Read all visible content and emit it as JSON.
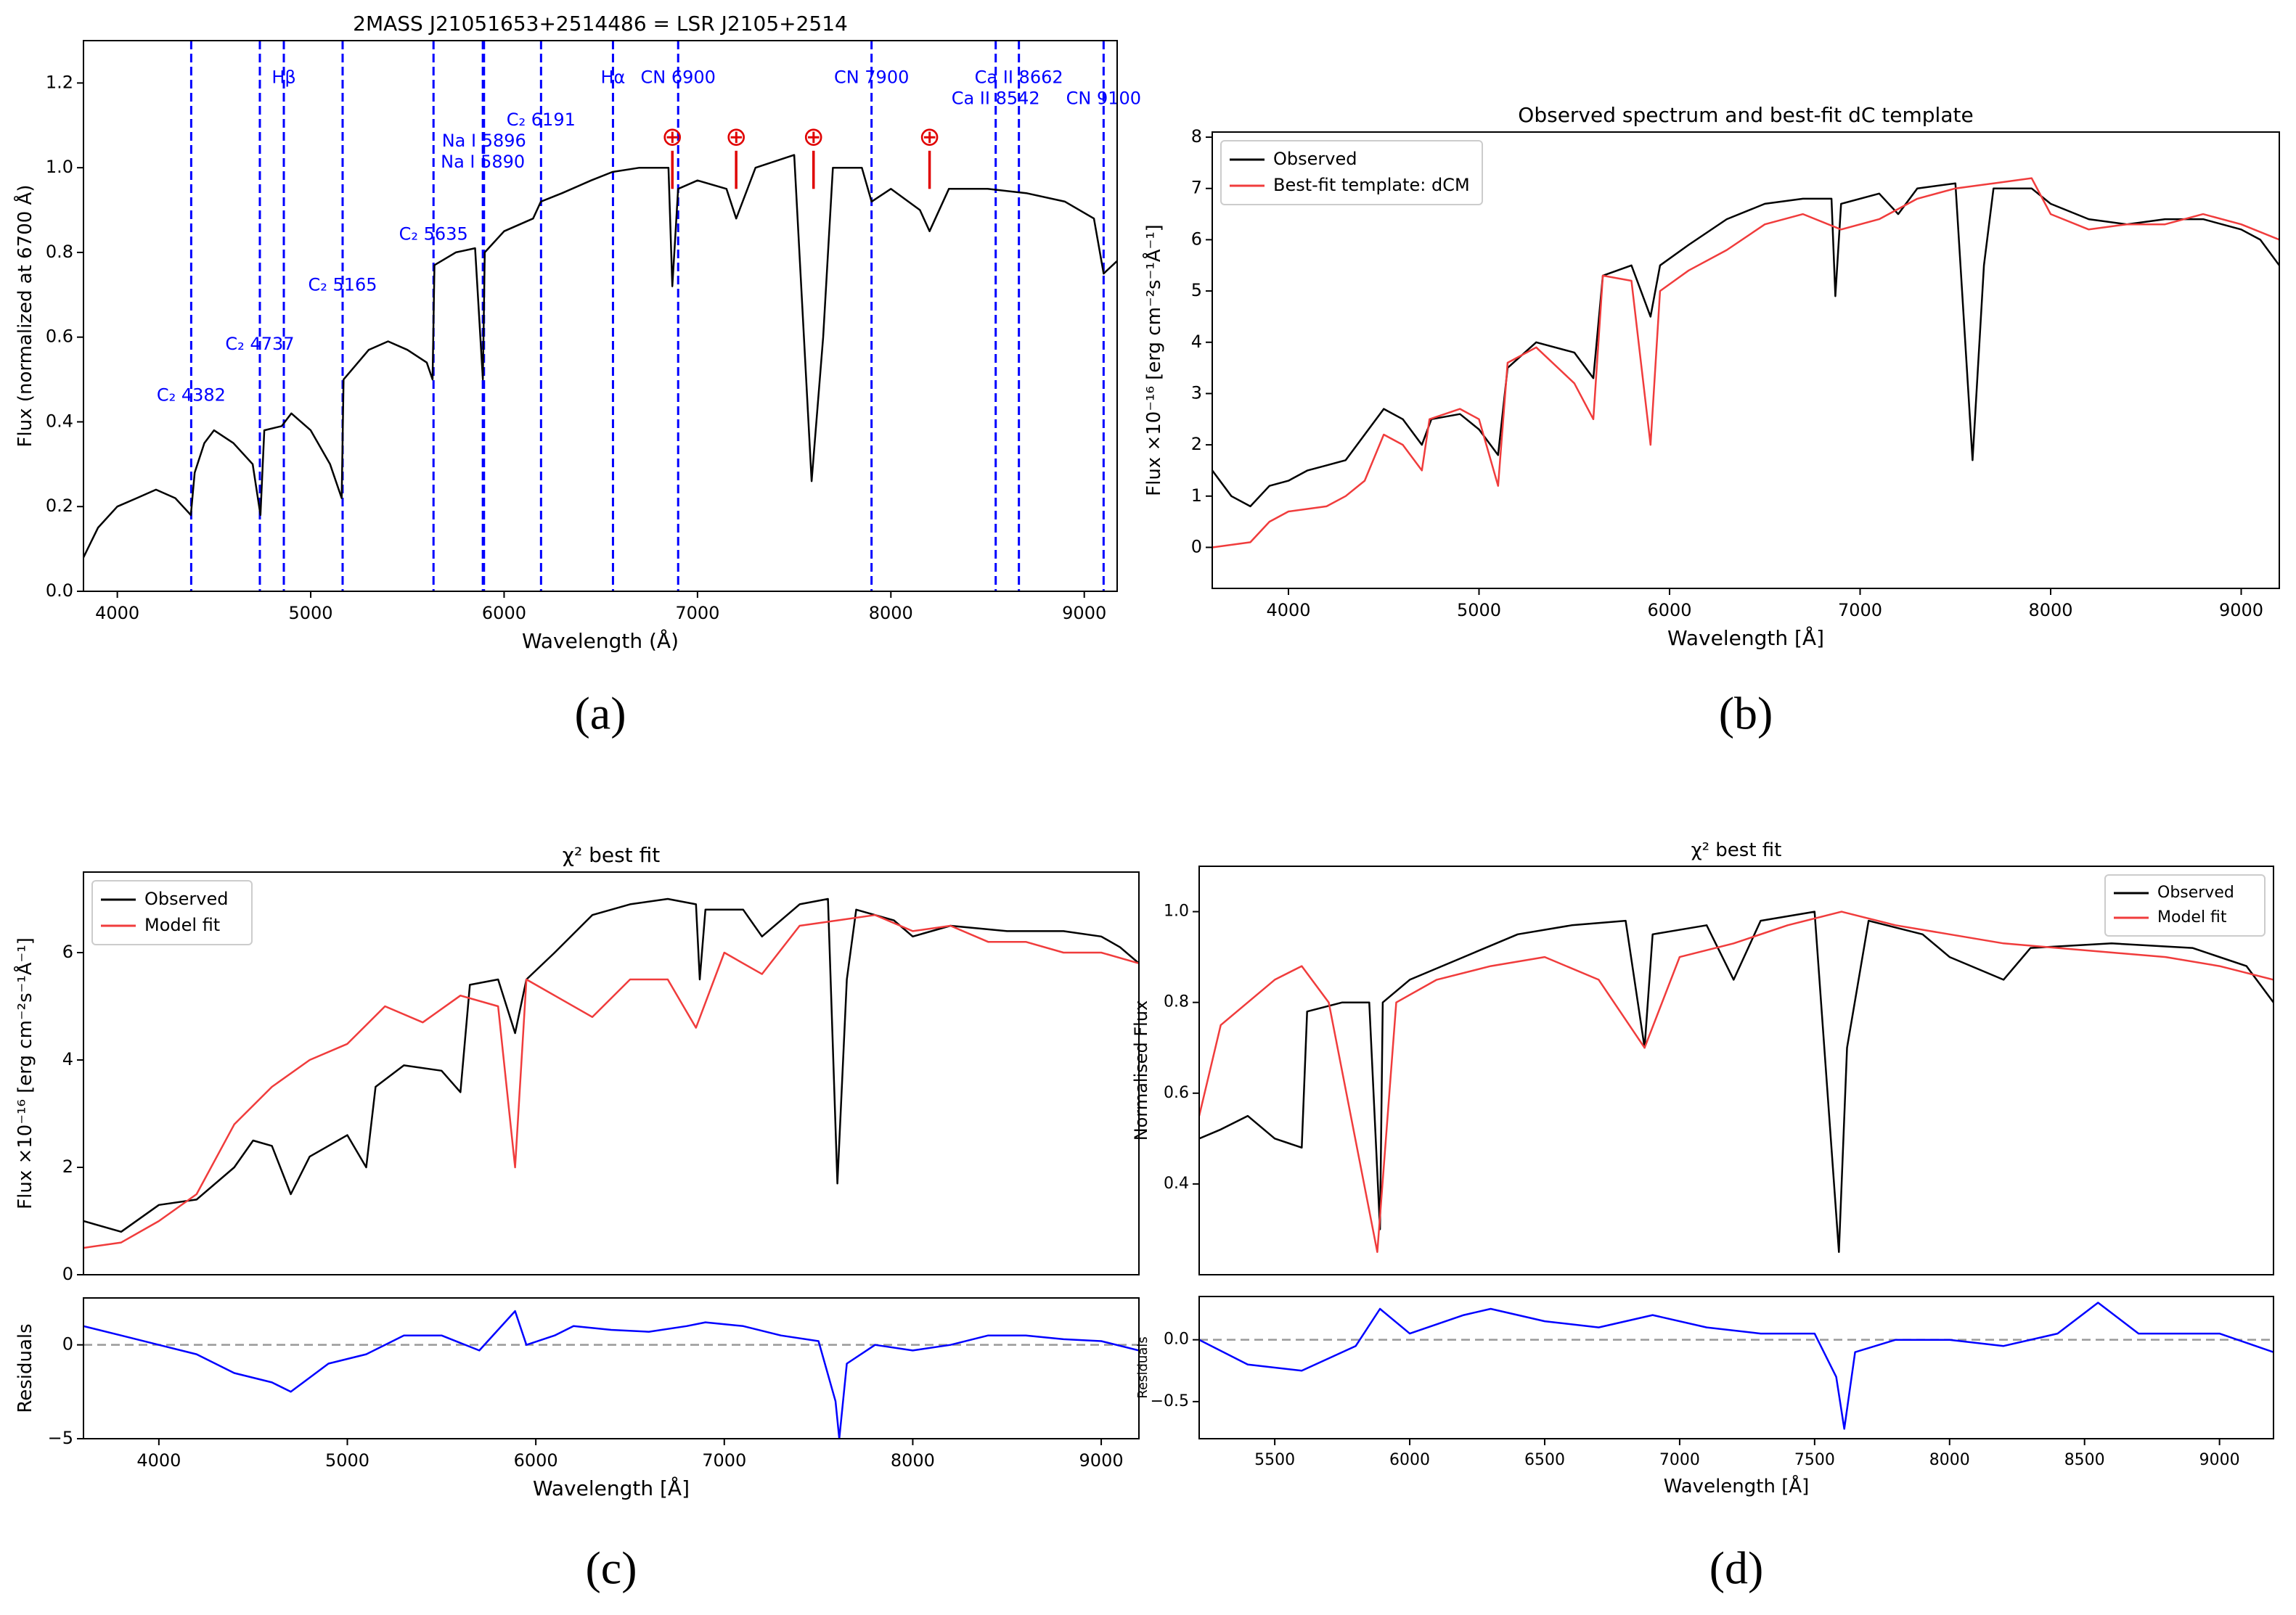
{
  "chart_data": [
    {
      "type": "line",
      "panel_label": "(a)",
      "title": "2MASS J21051653+2514486 = LSR J2105+2514",
      "xlabel": "Wavelength (Å)",
      "ylabel": "Flux (normalized at 6700 Å)",
      "xlim": [
        3825,
        9170
      ],
      "ylim": [
        0,
        1.3
      ],
      "xticks": [
        4000,
        5000,
        6000,
        7000,
        8000,
        9000
      ],
      "yticks": [
        {
          "value": 0,
          "label": "0.0"
        },
        0.2,
        0.4,
        0.6,
        0.8,
        {
          "value": 1,
          "label": "1.0"
        },
        1.2
      ],
      "series": [
        {
          "color": "#000000",
          "x": [
            3825,
            3900,
            4000,
            4100,
            4200,
            4300,
            4380,
            4400,
            4450,
            4500,
            4600,
            4700,
            4740,
            4760,
            4850,
            4900,
            5000,
            5100,
            5160,
            5170,
            5300,
            5400,
            5500,
            5600,
            5630,
            5640,
            5750,
            5850,
            5890,
            5900,
            6000,
            6150,
            6190,
            6300,
            6450,
            6560,
            6700,
            6850,
            6870,
            6900,
            7000,
            7150,
            7200,
            7300,
            7500,
            7590,
            7650,
            7700,
            7850,
            7900,
            8000,
            8150,
            8200,
            8300,
            8500,
            8700,
            8900,
            9050,
            9100,
            9170
          ],
          "values": [
            0.08,
            0.15,
            0.2,
            0.22,
            0.24,
            0.22,
            0.18,
            0.28,
            0.35,
            0.38,
            0.35,
            0.3,
            0.18,
            0.38,
            0.39,
            0.42,
            0.38,
            0.3,
            0.22,
            0.5,
            0.57,
            0.59,
            0.57,
            0.54,
            0.5,
            0.77,
            0.8,
            0.81,
            0.5,
            0.8,
            0.85,
            0.88,
            0.92,
            0.94,
            0.97,
            0.99,
            1.0,
            1.0,
            0.72,
            0.95,
            0.97,
            0.95,
            0.88,
            1.0,
            1.03,
            0.26,
            0.6,
            1.0,
            1.0,
            0.92,
            0.95,
            0.9,
            0.85,
            0.95,
            0.95,
            0.94,
            0.92,
            0.88,
            0.75,
            0.78
          ]
        }
      ],
      "vlines": {
        "color": "#0000ff",
        "lines": [
          {
            "x": 4382,
            "label": "C₂ 4382"
          },
          {
            "x": 4737,
            "label": "C₂ 4737"
          },
          {
            "x": 4861,
            "label": "Hβ"
          },
          {
            "x": 5165,
            "label": "C₂ 5165"
          },
          {
            "x": 5635,
            "label": "C₂ 5635"
          },
          {
            "x": 5890,
            "label": "Na I 5890"
          },
          {
            "x": 5896,
            "label": "Na I 5896"
          },
          {
            "x": 6191,
            "label": "C₂ 6191"
          },
          {
            "x": 6563,
            "label": "Hα"
          },
          {
            "x": 6900,
            "label": "CN 6900"
          },
          {
            "x": 7900,
            "label": "CN 7900"
          },
          {
            "x": 8542,
            "label": "Ca II 8542"
          },
          {
            "x": 8662,
            "label": "Ca II 8662"
          },
          {
            "x": 9100,
            "label": "CN 9100"
          }
        ]
      },
      "telluric": {
        "symbol": "⊕",
        "color": "#e00000",
        "x": [
          6870,
          7200,
          7600,
          8200
        ]
      }
    },
    {
      "type": "line",
      "panel_label": "(b)",
      "title": "Observed spectrum and best-fit dC template",
      "xlabel": "Wavelength [Å]",
      "ylabel": "Flux ×10⁻¹⁶ [erg cm⁻²s⁻¹Å⁻¹]",
      "xlim": [
        3600,
        9200
      ],
      "ylim": [
        -0.8,
        8.1
      ],
      "xticks": [
        4000,
        5000,
        6000,
        7000,
        8000,
        9000
      ],
      "yticks": [
        0,
        1,
        2,
        3,
        4,
        5,
        6,
        7,
        8
      ],
      "legend": "upper left",
      "series": [
        {
          "name": "Observed",
          "color": "#000000",
          "x": [
            3600,
            3700,
            3800,
            3900,
            4000,
            4100,
            4200,
            4300,
            4400,
            4500,
            4600,
            4700,
            4750,
            4900,
            5000,
            5100,
            5150,
            5300,
            5500,
            5600,
            5650,
            5800,
            5900,
            5950,
            6100,
            6300,
            6500,
            6700,
            6850,
            6870,
            6900,
            7100,
            7200,
            7300,
            7500,
            7590,
            7650,
            7700,
            7900,
            8000,
            8200,
            8400,
            8600,
            8800,
            9000,
            9100,
            9200
          ],
          "values": [
            1.5,
            1.0,
            0.8,
            1.2,
            1.3,
            1.5,
            1.6,
            1.7,
            2.2,
            2.7,
            2.5,
            2.0,
            2.5,
            2.6,
            2.3,
            1.8,
            3.5,
            4.0,
            3.8,
            3.3,
            5.3,
            5.5,
            4.5,
            5.5,
            5.9,
            6.4,
            6.7,
            6.8,
            6.8,
            4.9,
            6.7,
            6.9,
            6.5,
            7.0,
            7.1,
            1.7,
            5.5,
            7.0,
            7.0,
            6.7,
            6.4,
            6.3,
            6.4,
            6.4,
            6.2,
            6.0,
            5.5
          ]
        },
        {
          "name": "Best-fit template: dCM",
          "color": "#f03c3c",
          "x": [
            3600,
            3800,
            3900,
            4000,
            4200,
            4300,
            4400,
            4500,
            4600,
            4700,
            4740,
            4900,
            5000,
            5100,
            5150,
            5300,
            5500,
            5600,
            5650,
            5800,
            5900,
            5950,
            6100,
            6300,
            6500,
            6700,
            6900,
            7100,
            7300,
            7500,
            7700,
            7900,
            8000,
            8200,
            8400,
            8600,
            8800,
            9000,
            9200
          ],
          "values": [
            0,
            0.1,
            0.5,
            0.7,
            0.8,
            1.0,
            1.3,
            2.2,
            2.0,
            1.5,
            2.5,
            2.7,
            2.5,
            1.2,
            3.6,
            3.9,
            3.2,
            2.5,
            5.3,
            5.2,
            2.0,
            5.0,
            5.4,
            5.8,
            6.3,
            6.5,
            6.2,
            6.4,
            6.8,
            7.0,
            7.1,
            7.2,
            6.5,
            6.2,
            6.3,
            6.3,
            6.5,
            6.3,
            6.0
          ]
        }
      ]
    },
    {
      "type": "line",
      "panel_label": "(c)",
      "title": "χ² best fit",
      "ylabel": "Flux ×10⁻¹⁶ [erg cm⁻²s⁻¹Å⁻¹]",
      "xlim": [
        3600,
        9200
      ],
      "ylim": [
        0,
        7.5
      ],
      "yticks": [
        0,
        2,
        4,
        6
      ],
      "legend": "upper left",
      "series": [
        {
          "name": "Observed",
          "color": "#000000",
          "x": [
            3600,
            3800,
            4000,
            4200,
            4400,
            4500,
            4600,
            4700,
            4800,
            5000,
            5100,
            5150,
            5300,
            5500,
            5600,
            5650,
            5800,
            5890,
            5950,
            6100,
            6300,
            6500,
            6700,
            6850,
            6870,
            6900,
            7100,
            7200,
            7400,
            7550,
            7600,
            7650,
            7700,
            7900,
            8000,
            8200,
            8500,
            8800,
            9000,
            9100,
            9200
          ],
          "values": [
            1.0,
            0.8,
            1.3,
            1.4,
            2.0,
            2.5,
            2.4,
            1.5,
            2.2,
            2.6,
            2.0,
            3.5,
            3.9,
            3.8,
            3.4,
            5.4,
            5.5,
            4.5,
            5.5,
            6.0,
            6.7,
            6.9,
            7.0,
            6.9,
            5.5,
            6.8,
            6.8,
            6.3,
            6.9,
            7.0,
            1.7,
            5.5,
            6.8,
            6.6,
            6.3,
            6.5,
            6.4,
            6.4,
            6.3,
            6.1,
            5.8
          ]
        },
        {
          "name": "Model fit",
          "color": "#f03c3c",
          "x": [
            3600,
            3800,
            4000,
            4200,
            4400,
            4600,
            4800,
            5000,
            5200,
            5400,
            5600,
            5800,
            5890,
            5950,
            6100,
            6300,
            6500,
            6700,
            6850,
            7000,
            7200,
            7400,
            7600,
            7800,
            8000,
            8200,
            8400,
            8600,
            8800,
            9000,
            9200
          ],
          "values": [
            0.5,
            0.6,
            1.0,
            1.5,
            2.8,
            3.5,
            4.0,
            4.3,
            5.0,
            4.7,
            5.2,
            5.0,
            2.0,
            5.5,
            5.2,
            4.8,
            5.5,
            5.5,
            4.6,
            6.0,
            5.6,
            6.5,
            6.6,
            6.7,
            6.4,
            6.5,
            6.2,
            6.2,
            6.0,
            6.0,
            5.8
          ]
        }
      ]
    },
    {
      "type": "line",
      "xlabel": "Wavelength [Å]",
      "ylabel": "Residuals",
      "xlim": [
        3600,
        9200
      ],
      "ylim": [
        -5,
        2.5
      ],
      "xticks": [
        4000,
        5000,
        6000,
        7000,
        8000,
        9000
      ],
      "yticks": [
        {
          "value": -5,
          "label": "−5"
        },
        0
      ],
      "hline": 0,
      "series": [
        {
          "color": "#0000ff",
          "x": [
            3600,
            3800,
            4000,
            4200,
            4400,
            4600,
            4700,
            4900,
            5100,
            5300,
            5500,
            5700,
            5890,
            5950,
            6100,
            6200,
            6400,
            6600,
            6800,
            6900,
            7100,
            7300,
            7500,
            7590,
            7610,
            7650,
            7800,
            8000,
            8200,
            8400,
            8600,
            8800,
            9000,
            9200
          ],
          "values": [
            1,
            0.5,
            0,
            -0.5,
            -1.5,
            -2,
            -2.5,
            -1,
            -0.5,
            0.5,
            0.5,
            -0.3,
            1.8,
            0,
            0.5,
            1,
            0.8,
            0.7,
            1.0,
            1.2,
            1,
            0.5,
            0.2,
            -3,
            -5,
            -1,
            0,
            -0.3,
            0,
            0.5,
            0.5,
            0.3,
            0.2,
            -0.3
          ]
        }
      ]
    },
    {
      "type": "line",
      "panel_label": "(d)",
      "title": "χ² best fit",
      "ylabel": "Normalised Flux",
      "xlim": [
        5220,
        9200
      ],
      "ylim": [
        0.2,
        1.1
      ],
      "yticks": [
        0.4,
        0.6,
        0.8,
        {
          "value": 1,
          "label": "1.0"
        }
      ],
      "legend": "upper right",
      "series": [
        {
          "name": "Observed",
          "color": "#000000",
          "x": [
            5220,
            5300,
            5400,
            5500,
            5600,
            5620,
            5750,
            5850,
            5890,
            5900,
            6000,
            6200,
            6400,
            6600,
            6800,
            6870,
            6900,
            7100,
            7200,
            7300,
            7500,
            7590,
            7620,
            7700,
            7900,
            8000,
            8200,
            8300,
            8600,
            8900,
            9100,
            9200
          ],
          "values": [
            0.5,
            0.52,
            0.55,
            0.5,
            0.48,
            0.78,
            0.8,
            0.8,
            0.3,
            0.8,
            0.85,
            0.9,
            0.95,
            0.97,
            0.98,
            0.7,
            0.95,
            0.97,
            0.85,
            0.98,
            1.0,
            0.25,
            0.7,
            0.98,
            0.95,
            0.9,
            0.85,
            0.92,
            0.93,
            0.92,
            0.88,
            0.8
          ]
        },
        {
          "name": "Model fit",
          "color": "#f03c3c",
          "x": [
            5220,
            5300,
            5400,
            5500,
            5600,
            5700,
            5880,
            5950,
            6100,
            6300,
            6500,
            6700,
            6870,
            7000,
            7200,
            7400,
            7600,
            7800,
            8000,
            8200,
            8400,
            8600,
            8800,
            9000,
            9200
          ],
          "values": [
            0.55,
            0.75,
            0.8,
            0.85,
            0.88,
            0.8,
            0.25,
            0.8,
            0.85,
            0.88,
            0.9,
            0.85,
            0.7,
            0.9,
            0.93,
            0.97,
            1.0,
            0.97,
            0.95,
            0.93,
            0.92,
            0.91,
            0.9,
            0.88,
            0.85
          ]
        }
      ]
    },
    {
      "type": "line",
      "xlabel": "Wavelength [Å]",
      "ylabel": "Residuals",
      "xlim": [
        5220,
        9200
      ],
      "ylim": [
        -0.8,
        0.35
      ],
      "xticks": [
        5500,
        6000,
        6500,
        7000,
        7500,
        8000,
        8500,
        9000
      ],
      "yticks": [
        {
          "value": -0.5,
          "label": "−0.5"
        },
        {
          "value": 0,
          "label": "0.0"
        }
      ],
      "hline": 0,
      "series": [
        {
          "color": "#0000ff",
          "x": [
            5220,
            5400,
            5600,
            5800,
            5890,
            6000,
            6200,
            6300,
            6500,
            6700,
            6900,
            7100,
            7300,
            7500,
            7580,
            7610,
            7650,
            7800,
            8000,
            8200,
            8400,
            8550,
            8700,
            9000,
            9200
          ],
          "values": [
            0,
            -0.2,
            -0.25,
            -0.05,
            0.25,
            0.05,
            0.2,
            0.25,
            0.15,
            0.1,
            0.2,
            0.1,
            0.05,
            0.05,
            -0.3,
            -0.72,
            -0.1,
            0,
            0,
            -0.05,
            0.05,
            0.3,
            0.05,
            0.05,
            -0.1
          ]
        }
      ]
    }
  ]
}
